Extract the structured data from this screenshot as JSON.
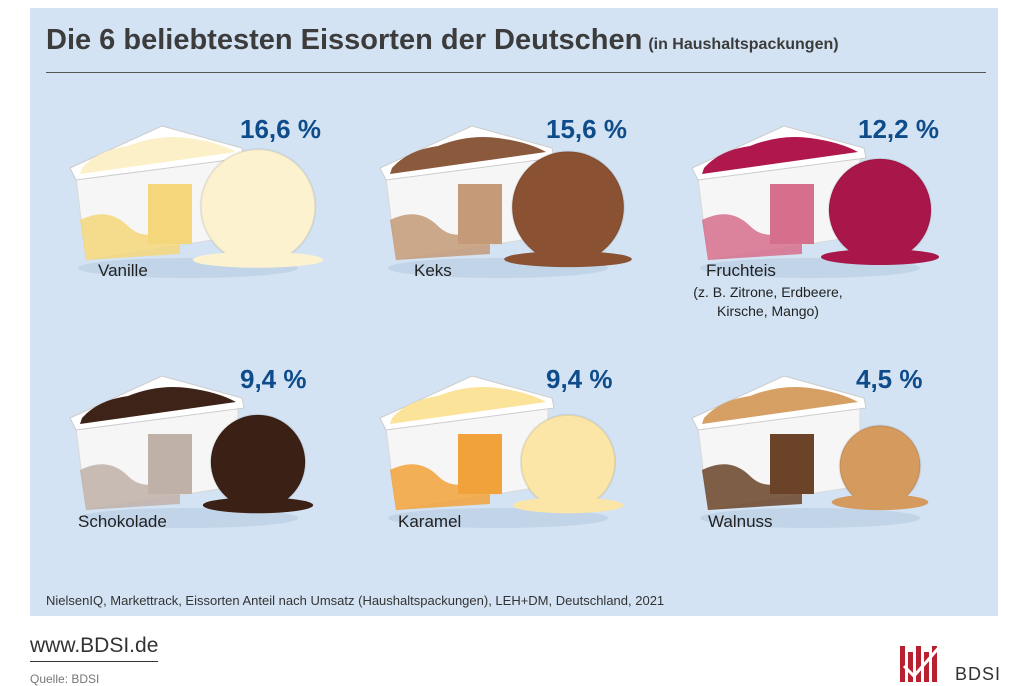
{
  "chart_data": {
    "type": "bar",
    "title": "Die 6 beliebtesten Eissorten der Deutschen",
    "subtitle": "(in Haushaltspackungen)",
    "categories": [
      "Vanille",
      "Keks",
      "Fruchteis",
      "Schokolade",
      "Karamel",
      "Walnuss"
    ],
    "values": [
      16.6,
      15.6,
      12.2,
      9.4,
      9.4,
      4.5
    ],
    "value_labels": [
      "16,6 %",
      "15,6 %",
      "12,2 %",
      "9,4 %",
      "9,4 %",
      "4,5 %"
    ],
    "unit": "%",
    "annotations": {
      "fruchteis_note": [
        "(z. B. Zitrone, Erdbeere,",
        "Kirsche, Mango)"
      ]
    },
    "source": "NielsenIQ, Markettrack, Eissorten Anteil nach Umsatz  (Haushaltspackungen), LEH+DM, Deutschland, 2021"
  },
  "colors": {
    "Vanille": {
      "ice": "#fbf0c8",
      "scoop": "#fdf2d0",
      "band": "#f4d77a"
    },
    "Keks": {
      "ice": "#8b5a3c",
      "scoop": "#8a5233",
      "band": "#c49a78"
    },
    "Fruchteis": {
      "ice": "#b0174d",
      "scoop": "#a8164a",
      "band": "#d66f8c"
    },
    "Schokolade": {
      "ice": "#3e2418",
      "scoop": "#3a2015",
      "band": "#bfb0a8"
    },
    "Karamel": {
      "ice": "#fbe39a",
      "scoop": "#fbe6a8",
      "band": "#f2a23a"
    },
    "Walnuss": {
      "ice": "#d6a065",
      "scoop": "#d49a5e",
      "band": "#6a4328"
    }
  },
  "footer": {
    "url": "www.BDSI.de",
    "quelle": "Quelle: BDSI",
    "logo_text": "BDSI"
  }
}
